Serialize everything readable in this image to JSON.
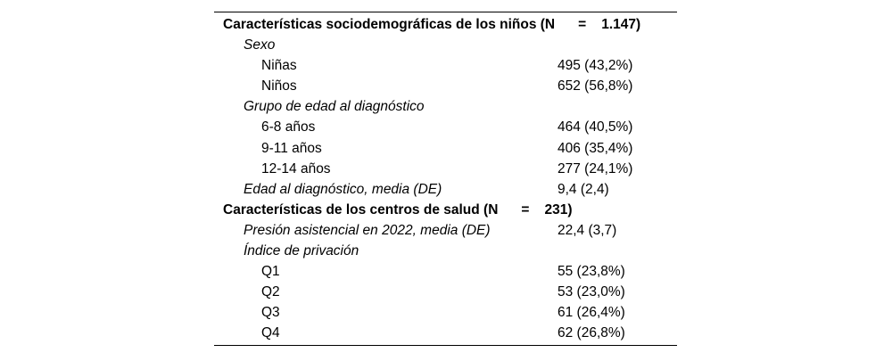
{
  "page": {
    "background_color": "#ffffff",
    "text_color": "#000000",
    "rule_color": "#000000"
  },
  "table": {
    "rows": [
      {
        "type": "section-header",
        "label": "Características sociodemográficas de los niños (N",
        "eq": "=",
        "n": "1.147)"
      },
      {
        "type": "variable",
        "label": "Sexo",
        "value": ""
      },
      {
        "type": "category",
        "label": "Niñas",
        "value": "495 (43,2%)"
      },
      {
        "type": "category",
        "label": "Niños",
        "value": "652 (56,8%)"
      },
      {
        "type": "variable",
        "label": "Grupo de edad al diagnóstico",
        "value": ""
      },
      {
        "type": "category",
        "label": "6-8 años",
        "value": "464 (40,5%)"
      },
      {
        "type": "category",
        "label": "9-11 años",
        "value": "406 (35,4%)"
      },
      {
        "type": "category",
        "label": "12-14 años",
        "value": "277 (24,1%)"
      },
      {
        "type": "variable",
        "label": "Edad al diagnóstico, media (DE)",
        "value": "9,4 (2,4)"
      },
      {
        "type": "section-header",
        "label": "Características de los centros de salud (N",
        "eq": "=",
        "n": "231)"
      },
      {
        "type": "variable",
        "label": "Presión asistencial en 2022, media (DE)",
        "value": "22,4 (3,7)"
      },
      {
        "type": "variable",
        "label": "Índice de privación",
        "value": ""
      },
      {
        "type": "category",
        "label": "Q1",
        "value": "55 (23,8%)"
      },
      {
        "type": "category",
        "label": "Q2",
        "value": "53 (23,0%)"
      },
      {
        "type": "category",
        "label": "Q3",
        "value": "61 (26,4%)"
      },
      {
        "type": "category",
        "label": "Q4",
        "value": "62 (26,8%)"
      }
    ]
  }
}
